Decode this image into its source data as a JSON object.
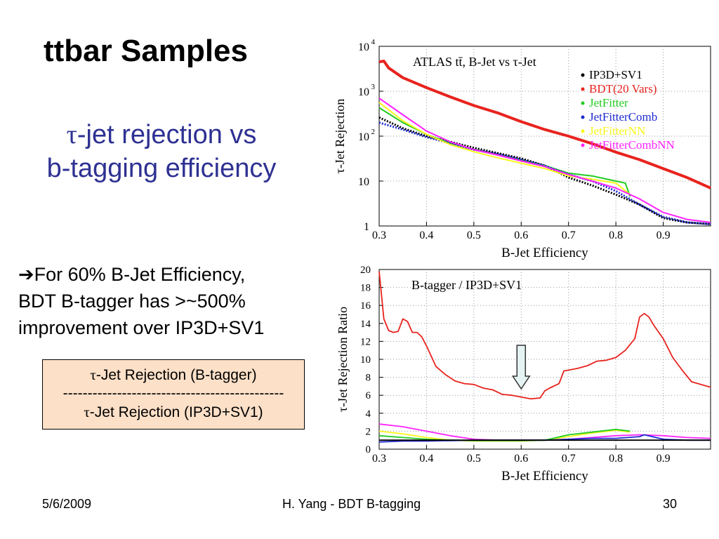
{
  "slide": {
    "title": "ttbar Samples",
    "subtitle_tau": "τ",
    "subtitle_line1": "-jet rejection vs",
    "subtitle_line2": "b-tagging efficiency",
    "bullet_arrow": "➔",
    "bullet_line1": "For 60% B-Jet Efficiency,",
    "bullet_line2": "BDT B-tagger has >~500%",
    "bullet_line3": "improvement over IP3D+SV1",
    "formula_tau": "τ",
    "formula_numerator": "-Jet Rejection (B-tagger)",
    "formula_divider": "---------------------------------------------",
    "formula_denominator": "-Jet Rejection (IP3D+SV1)"
  },
  "footer": {
    "date": "5/6/2009",
    "center": "H. Yang - BDT B-tagging",
    "page": "30"
  },
  "chart_data": [
    {
      "type": "line",
      "title": "ATLAS tt̄, B-Jet vs τ-Jet",
      "xlabel": "B-Jet Efficiency",
      "ylabel": "τ-Jet Rejection",
      "xlim": [
        0.3,
        1.0
      ],
      "ylim": [
        1,
        10000
      ],
      "yscale": "log",
      "grid": true,
      "legend_position": "top-right",
      "xticks": [
        "0.3",
        "0.4",
        "0.5",
        "0.6",
        "0.7",
        "0.8",
        "0.9"
      ],
      "yticks": [
        {
          "value": 1,
          "base": "1",
          "exp": ""
        },
        {
          "value": 10,
          "base": "10",
          "exp": ""
        },
        {
          "value": 100,
          "base": "10",
          "exp": "2"
        },
        {
          "value": 1000,
          "base": "10",
          "exp": "3"
        },
        {
          "value": 10000,
          "base": "10",
          "exp": "4"
        }
      ],
      "series": [
        {
          "name": "IP3D+SV1",
          "color": "#000000",
          "style": "dotted",
          "x": [
            0.3,
            0.35,
            0.4,
            0.45,
            0.5,
            0.55,
            0.6,
            0.65,
            0.7,
            0.75,
            0.8,
            0.85,
            0.9,
            0.95,
            1.0
          ],
          "y": [
            260,
            150,
            100,
            75,
            55,
            42,
            32,
            22,
            12,
            8,
            5,
            3,
            1.5,
            1.2,
            1.1
          ]
        },
        {
          "name": "BDT(20 Vars)",
          "color": "#e8231e",
          "style": "thick",
          "x": [
            0.3,
            0.31,
            0.32,
            0.35,
            0.4,
            0.45,
            0.5,
            0.55,
            0.6,
            0.65,
            0.7,
            0.75,
            0.8,
            0.85,
            0.9,
            0.95,
            1.0
          ],
          "y": [
            4500,
            4700,
            3300,
            2000,
            1200,
            750,
            480,
            330,
            210,
            140,
            100,
            68,
            44,
            30,
            19,
            12,
            7
          ]
        },
        {
          "name": "JetFitter",
          "color": "#22cc22",
          "style": "solid",
          "x": [
            0.3,
            0.35,
            0.4,
            0.45,
            0.5,
            0.55,
            0.6,
            0.65,
            0.7,
            0.75,
            0.8,
            0.82,
            0.83
          ],
          "y": [
            430,
            200,
            110,
            70,
            50,
            38,
            29,
            22,
            15,
            13,
            10,
            9,
            4.5
          ]
        },
        {
          "name": "JetFitterComb",
          "color": "#1e2bd0",
          "style": "dotted",
          "x": [
            0.3,
            0.35,
            0.4,
            0.45,
            0.5,
            0.55,
            0.6,
            0.65,
            0.7,
            0.75,
            0.8,
            0.85,
            0.9,
            0.95,
            1.0
          ],
          "y": [
            200,
            140,
            95,
            70,
            50,
            40,
            30,
            22,
            14,
            10,
            6,
            3,
            1.6,
            1.2,
            1.1
          ]
        },
        {
          "name": "JetFitterNN",
          "color": "#f7f71e",
          "style": "solid",
          "x": [
            0.3,
            0.35,
            0.4,
            0.45,
            0.5,
            0.55,
            0.6,
            0.65,
            0.7,
            0.75,
            0.8,
            0.83
          ],
          "y": [
            560,
            220,
            110,
            65,
            45,
            33,
            25,
            19,
            13,
            11,
            9,
            5
          ]
        },
        {
          "name": "JetFitterCombNN",
          "color": "#ff22ff",
          "style": "solid",
          "x": [
            0.3,
            0.35,
            0.4,
            0.45,
            0.5,
            0.55,
            0.6,
            0.65,
            0.7,
            0.75,
            0.8,
            0.85,
            0.9,
            0.95,
            1.0
          ],
          "y": [
            700,
            300,
            130,
            75,
            50,
            38,
            28,
            21,
            14,
            10,
            7,
            4,
            2,
            1.4,
            1.2
          ]
        }
      ]
    },
    {
      "type": "line",
      "title": "B-tagger / IP3D+SV1",
      "xlabel": "B-Jet Efficiency",
      "ylabel": "τ-Jet Rejection Ratio",
      "xlim": [
        0.3,
        1.0
      ],
      "ylim": [
        0,
        20
      ],
      "grid": true,
      "xticks": [
        "0.3",
        "0.4",
        "0.5",
        "0.6",
        "0.7",
        "0.8",
        "0.9"
      ],
      "yticks": [
        "0",
        "2",
        "4",
        "6",
        "8",
        "10",
        "12",
        "14",
        "16",
        "18",
        "20"
      ],
      "annotation": "down-arrow at 0.6",
      "series": [
        {
          "name": "BDT(20 Vars)",
          "color": "#e8231e",
          "x": [
            0.3,
            0.31,
            0.32,
            0.33,
            0.34,
            0.35,
            0.36,
            0.37,
            0.38,
            0.39,
            0.4,
            0.42,
            0.44,
            0.46,
            0.48,
            0.5,
            0.52,
            0.54,
            0.56,
            0.58,
            0.6,
            0.62,
            0.64,
            0.65,
            0.66,
            0.68,
            0.69,
            0.7,
            0.72,
            0.74,
            0.76,
            0.78,
            0.8,
            0.82,
            0.84,
            0.85,
            0.86,
            0.87,
            0.88,
            0.9,
            0.92,
            0.94,
            0.96,
            1.0
          ],
          "y": [
            19.8,
            14.5,
            13.2,
            13.0,
            13.1,
            14.5,
            14.2,
            13.0,
            13.0,
            12.5,
            11.5,
            9.2,
            8.3,
            7.6,
            7.3,
            7.2,
            6.8,
            6.6,
            6.1,
            6.0,
            5.8,
            5.6,
            5.7,
            6.5,
            6.8,
            7.3,
            8.7,
            8.8,
            9.0,
            9.3,
            9.8,
            9.9,
            10.2,
            11.0,
            12.3,
            14.7,
            15.1,
            14.7,
            13.8,
            12.3,
            10.2,
            8.8,
            7.5,
            6.9
          ]
        },
        {
          "name": "JetFitterCombNN",
          "color": "#ff22ff",
          "x": [
            0.3,
            0.35,
            0.4,
            0.45,
            0.5,
            0.55,
            0.6,
            0.65,
            0.7,
            0.75,
            0.8,
            0.85,
            0.9,
            0.95,
            1.0
          ],
          "y": [
            2.8,
            2.5,
            2.0,
            1.5,
            1.1,
            1.0,
            1.0,
            1.0,
            1.1,
            1.3,
            1.5,
            1.6,
            1.5,
            1.3,
            1.2
          ]
        },
        {
          "name": "JetFitterNN",
          "color": "#f7f71e",
          "x": [
            0.3,
            0.35,
            0.4,
            0.45,
            0.5,
            0.55,
            0.6,
            0.65,
            0.7,
            0.75,
            0.8,
            0.83
          ],
          "y": [
            2.0,
            1.7,
            1.3,
            1.0,
            0.9,
            0.9,
            0.9,
            1.0,
            1.4,
            1.8,
            2.1,
            1.9
          ]
        },
        {
          "name": "JetFitter",
          "color": "#22cc22",
          "x": [
            0.3,
            0.35,
            0.4,
            0.45,
            0.5,
            0.55,
            0.6,
            0.65,
            0.7,
            0.75,
            0.8,
            0.83
          ],
          "y": [
            1.5,
            1.3,
            1.1,
            1.0,
            0.95,
            0.95,
            0.95,
            1.0,
            1.6,
            1.9,
            2.2,
            2.0
          ]
        },
        {
          "name": "JetFitterComb",
          "color": "#1e2bd0",
          "x": [
            0.3,
            0.35,
            0.4,
            0.45,
            0.5,
            0.55,
            0.6,
            0.65,
            0.7,
            0.75,
            0.8,
            0.85,
            0.86,
            0.9,
            0.95,
            1.0
          ],
          "y": [
            0.8,
            0.9,
            0.9,
            0.95,
            1.0,
            1.0,
            1.0,
            1.0,
            1.1,
            1.2,
            1.2,
            1.4,
            1.6,
            1.1,
            1.0,
            1.0
          ]
        },
        {
          "name": "IP3D+SV1",
          "color": "#000000",
          "x": [
            0.3,
            1.0
          ],
          "y": [
            1.0,
            1.0
          ]
        }
      ]
    }
  ]
}
